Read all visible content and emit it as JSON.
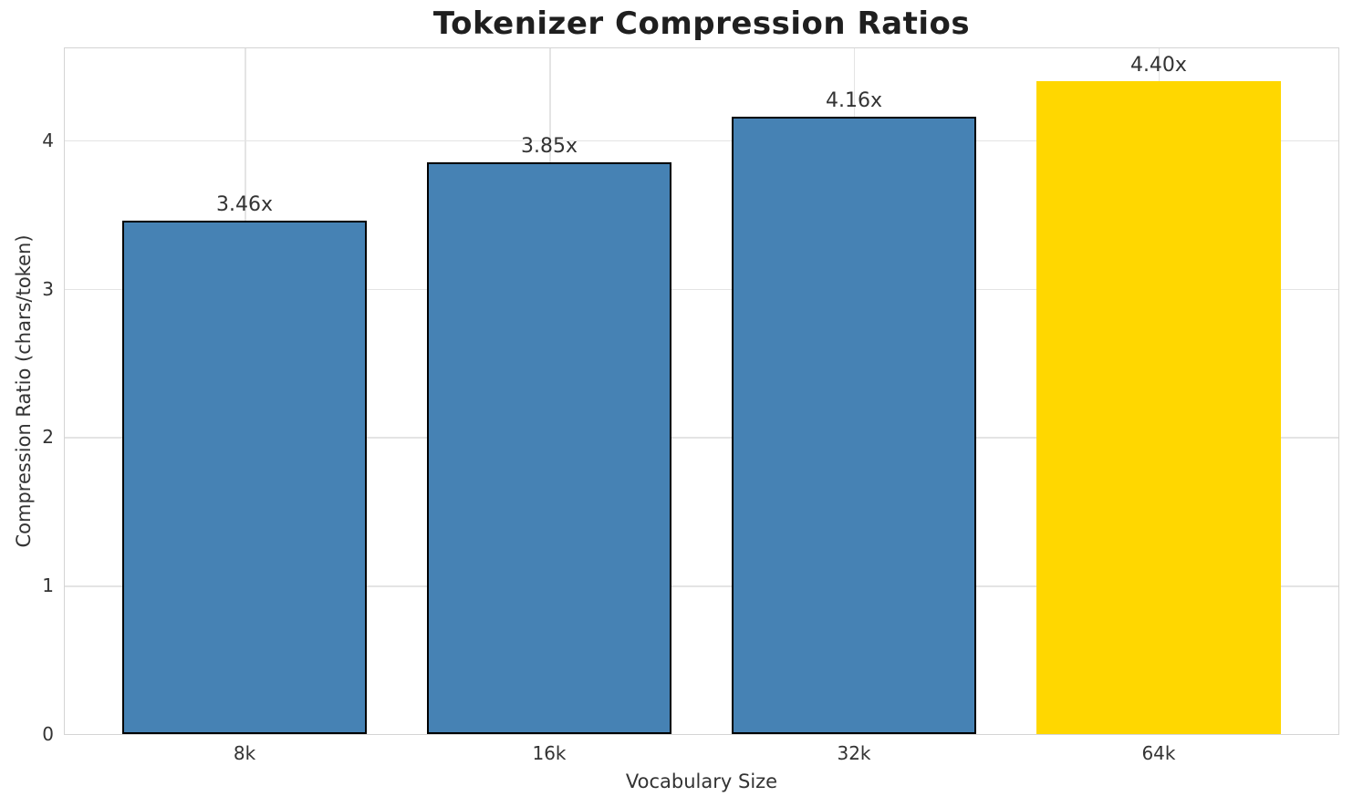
{
  "chart_data": {
    "type": "bar",
    "title": "Tokenizer Compression Ratios",
    "xlabel": "Vocabulary Size",
    "ylabel": "Compression Ratio (chars/token)",
    "categories": [
      "8k",
      "16k",
      "32k",
      "64k"
    ],
    "values": [
      3.46,
      3.85,
      4.16,
      4.4
    ],
    "bar_labels": [
      "3.46x",
      "3.85x",
      "4.16x",
      "4.40x"
    ],
    "yticks": [
      "0",
      "1",
      "2",
      "3",
      "4"
    ],
    "ylim": [
      0,
      4.62
    ],
    "grid": "on",
    "legend": "none",
    "highlight_index": 3,
    "bar_fill_colors": [
      "#4682B4",
      "#4682B4",
      "#4682B4",
      "#FFD700"
    ],
    "bar_edge_colors": [
      "#000000",
      "#000000",
      "#000000",
      "none"
    ],
    "colors": {
      "bar_blue": "#4682B4",
      "bar_gold": "#FFD700",
      "bar_edge": "#000000",
      "grid": "#e4e4e4",
      "spine": "#d4d4d4",
      "text": "#333333",
      "title_text": "#1f1f1f",
      "background": "#ffffff"
    }
  }
}
